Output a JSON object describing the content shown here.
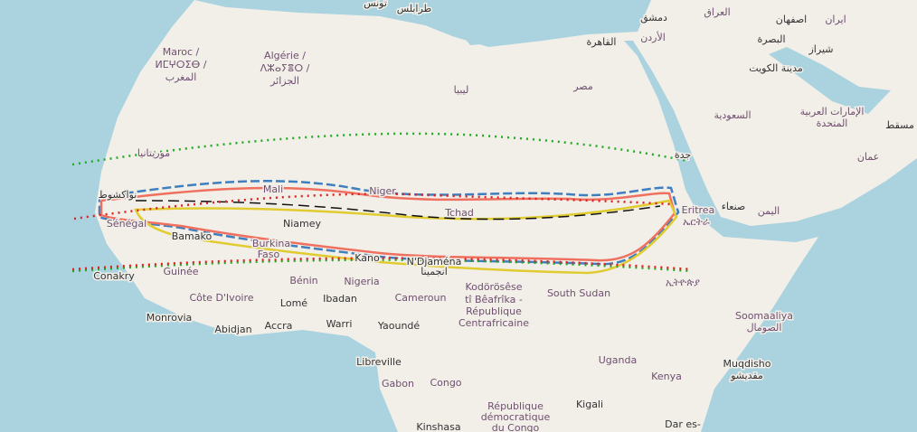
{
  "map": {
    "labels": [
      "تونس",
      "طرابلس",
      "دمشق",
      "العراق",
      "اصفهان",
      "ایران",
      "القاهرة",
      "الأردن",
      "البصرة",
      "شيراز",
      "مدينة الكويت",
      "Maroc /",
      "ⵍⵎⵖⵔⵉⴱ /",
      "المغرب",
      "Algérie /",
      "ⴷⵣⴰⵢⴻⵔ /",
      "الجزائر",
      "ليبيا",
      "مصر",
      "السعودية",
      "الإمارات العربية",
      "المتحدة",
      "مسقط",
      "عمان",
      "جدة",
      "موريتانيا",
      "نواكشوط",
      "Mali",
      "Niger",
      "Tchad",
      "Sénégal",
      "Bamako",
      "Burkina",
      "Faso",
      "Niamey",
      "Kano",
      "N'Djaména",
      "انجمينا",
      "Eritrea",
      "ኤርትራ",
      "صنعاء",
      "اليمن",
      "Conakry",
      "Guinée",
      "Bénin",
      "Nigeria",
      "Cameroun",
      "Kodörösêse",
      "tî Bêafrîka -",
      "République",
      "Centrafricaine",
      "South Sudan",
      "ኢትዮጵያ",
      "Côte D'Ivoire",
      "Lomé",
      "Ibadan",
      "Monrovia",
      "Abidjan",
      "Accra",
      "Warri",
      "Yaoundé",
      "Soomaaliya",
      "الصومال",
      "Libreville",
      "Uganda",
      "Kenya",
      "Muqdisho",
      "مقديشو",
      "Gabon",
      "Congo",
      "République",
      "démocratique",
      "du Congo",
      "Kigali",
      "Kinshasa",
      "Dar es-"
    ]
  }
}
